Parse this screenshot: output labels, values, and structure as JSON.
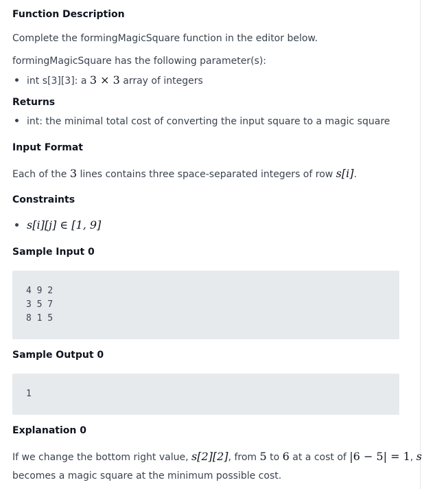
{
  "function_description": {
    "heading": "Function Description",
    "intro_prefix": "Complete the ",
    "intro_fn": "formingMagicSquare",
    "intro_suffix": " function in the editor below.",
    "params_intro": "formingMagicSquare has the following parameter(s):",
    "param_prefix": "int s[3][3]: a ",
    "param_math": "3 × 3",
    "param_suffix": " array of integers"
  },
  "returns": {
    "heading": "Returns",
    "item": "int: the minimal total cost of converting the input square to a magic square"
  },
  "input_format": {
    "heading": "Input Format",
    "text_prefix": "Each of the ",
    "text_math": "3",
    "text_mid": " lines contains three space-separated integers of row ",
    "text_math_row": "s[i]",
    "text_suffix": "."
  },
  "constraints": {
    "heading": "Constraints",
    "item_math": "s[i][j] ∈ [1, 9]"
  },
  "sample_input": {
    "heading": "Sample Input 0",
    "lines": [
      "4 9 2",
      "3 5 7",
      "8 1 5"
    ]
  },
  "sample_output": {
    "heading": "Sample Output 0",
    "lines": [
      "1"
    ]
  },
  "explanation": {
    "heading": "Explanation 0",
    "line1_prefix": "If we change the bottom right value, ",
    "line1_math_cell": "s[2][2]",
    "line1_mid1": ", from ",
    "line1_math_from": "5",
    "line1_mid2": " to ",
    "line1_math_to": "6",
    "line1_mid3": " at a cost of ",
    "line1_math_cost": "|6 − 5| = 1",
    "line1_mid4": ", ",
    "line1_math_s": "s",
    "line2": "becomes a magic square at the minimum possible cost."
  }
}
